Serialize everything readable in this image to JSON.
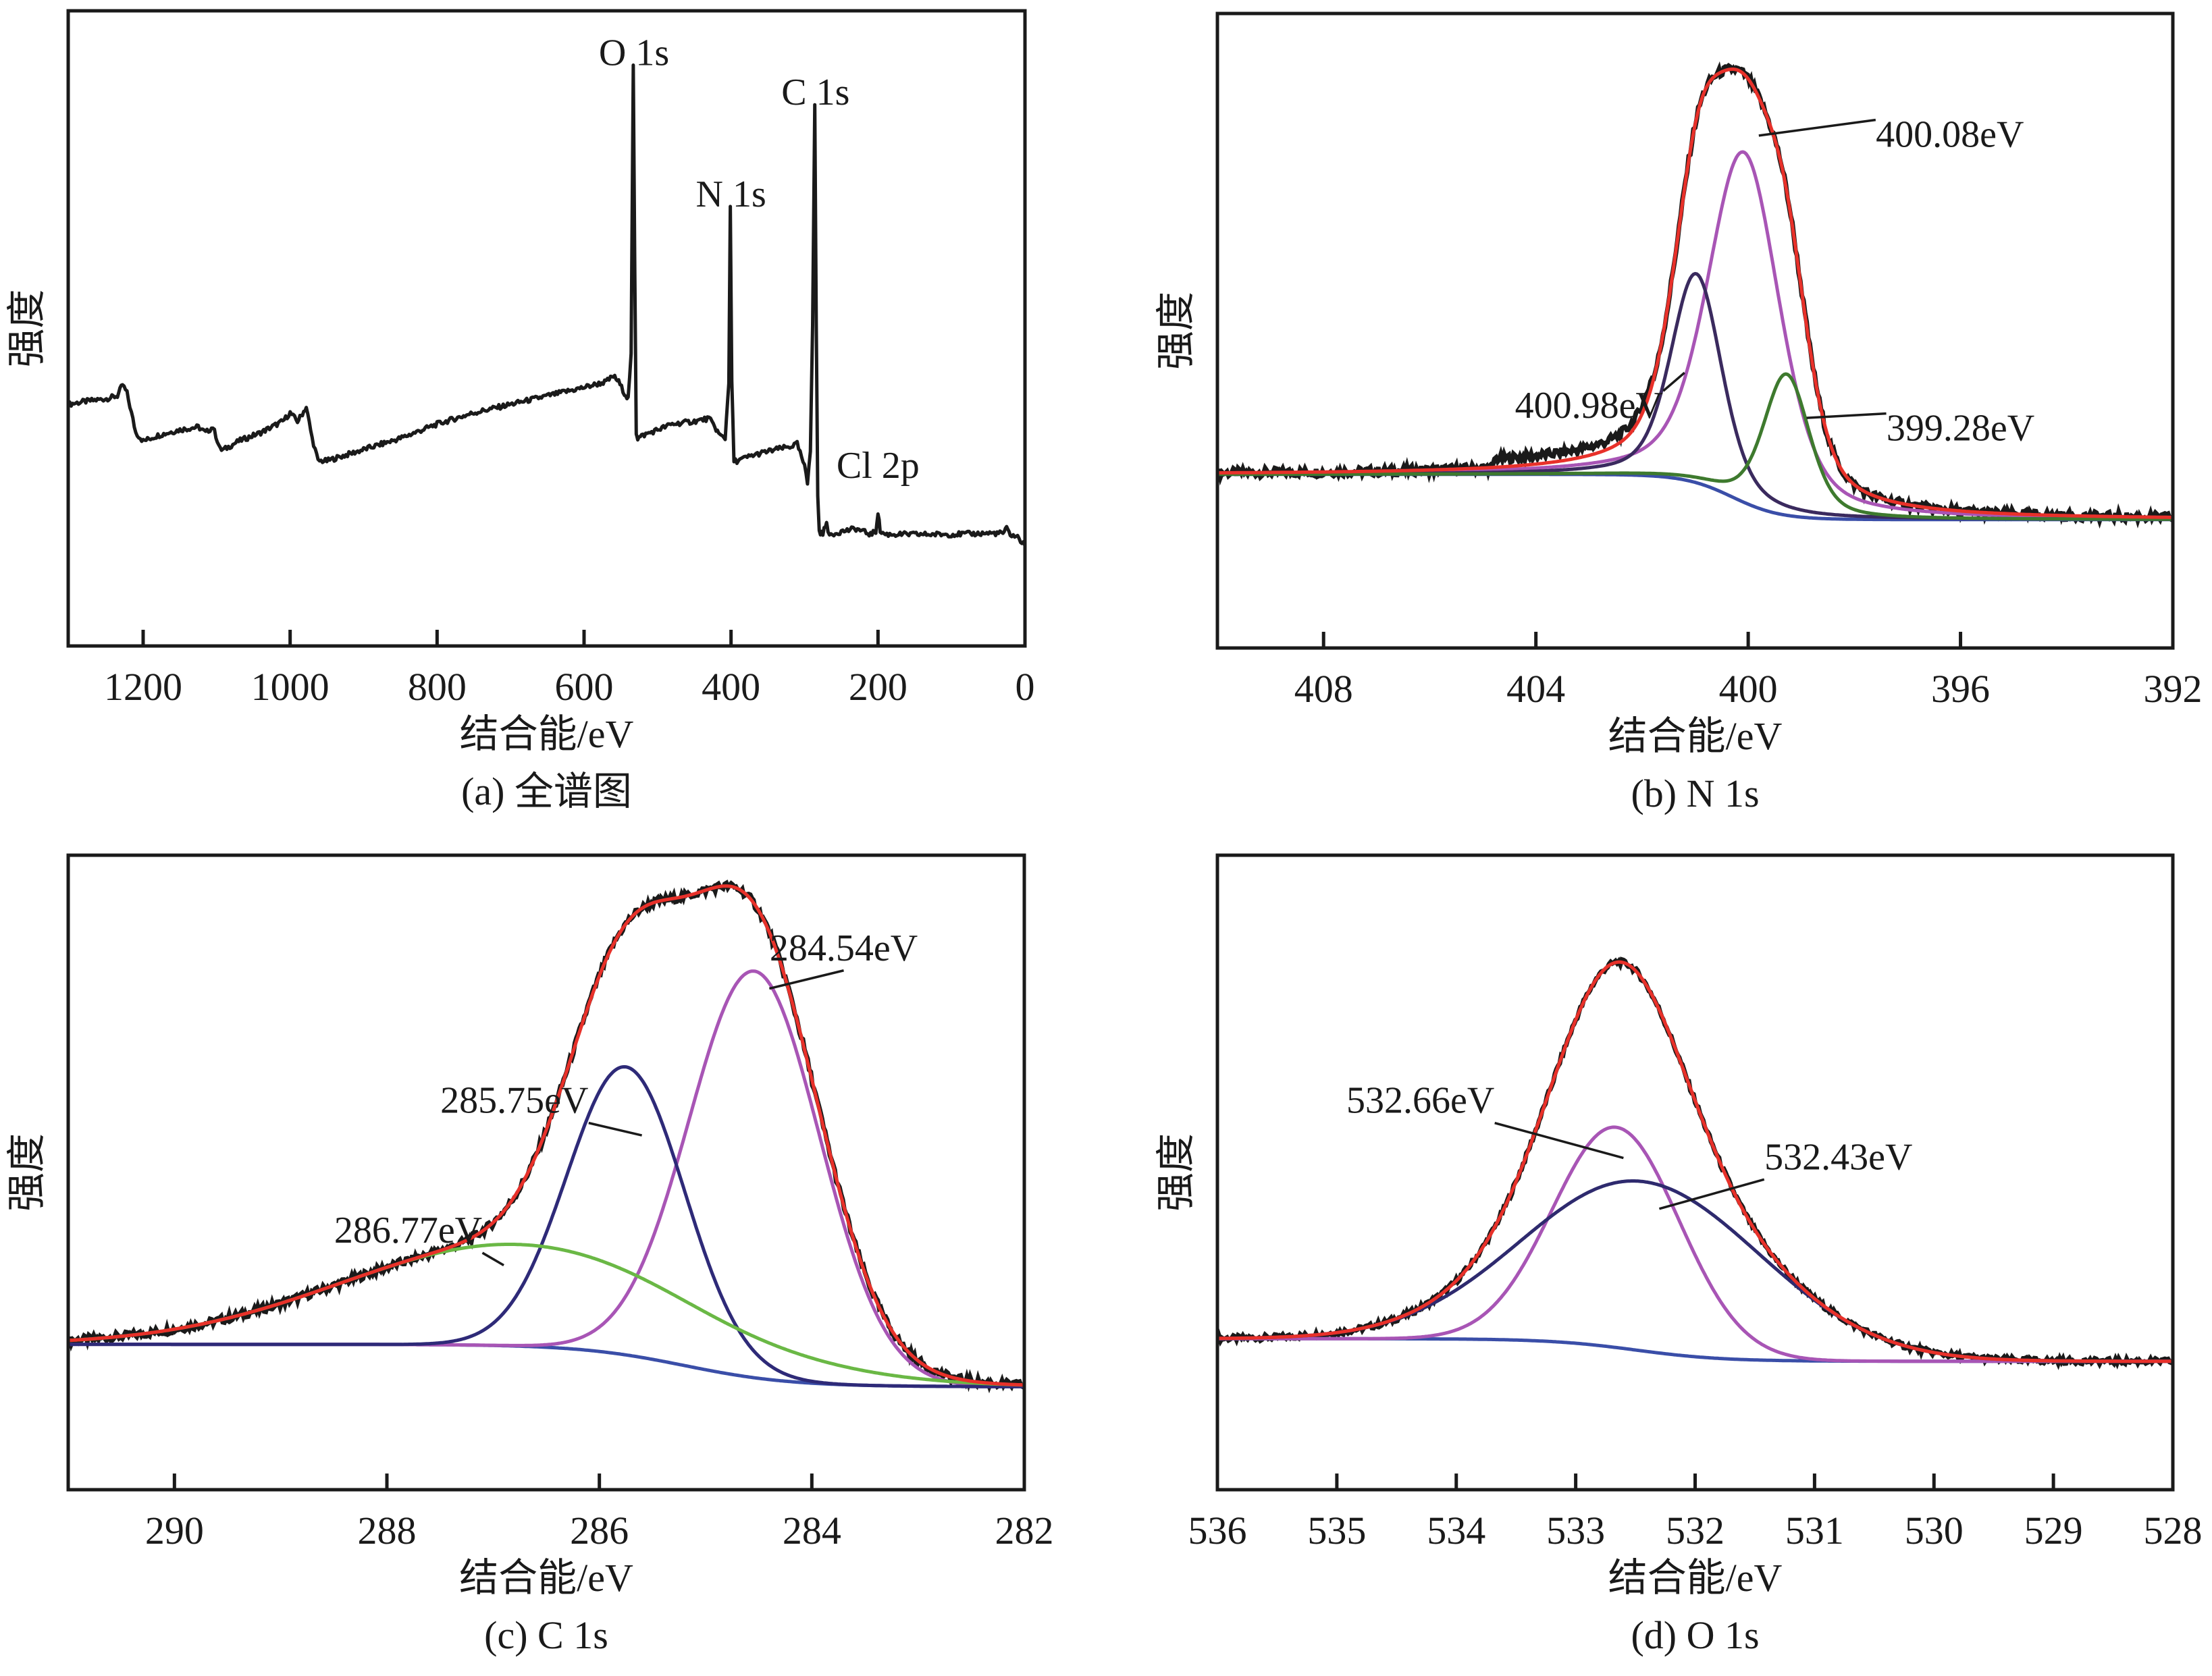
{
  "chart_data": [
    {
      "id": "a",
      "type": "line",
      "title": "",
      "caption": "(a) 全谱图",
      "xlabel": "结合能/eV",
      "ylabel": "强度",
      "xlim": [
        1302,
        0
      ],
      "ylim": [
        0,
        100
      ],
      "xticks": [
        1200,
        1000,
        800,
        600,
        400,
        200,
        0
      ],
      "grid": false,
      "legend": "none",
      "annotations": [
        {
          "text": "O 1s",
          "x": 532,
          "y": 96
        },
        {
          "text": "N 1s",
          "x": 400,
          "y": 71
        },
        {
          "text": "C 1s",
          "x": 285,
          "y": 89
        },
        {
          "text": "Cl 2p",
          "x": 200,
          "y": 23
        }
      ],
      "series": [
        {
          "name": "survey",
          "color": "#1a1a1a",
          "x": [
            1302,
            1280,
            1250,
            1235,
            1228,
            1222,
            1210,
            1200,
            1180,
            1150,
            1125,
            1115,
            1105,
            1095,
            1090,
            1070,
            1040,
            1010,
            1000,
            990,
            985,
            978,
            970,
            962,
            950,
            900,
            850,
            800,
            750,
            700,
            650,
            600,
            570,
            560,
            553,
            545,
            540,
            536,
            533,
            531,
            529,
            527,
            520,
            500,
            480,
            450,
            430,
            422,
            415,
            408,
            403,
            401,
            399,
            396,
            392,
            370,
            340,
            320,
            310,
            300,
            296,
            292,
            289,
            286,
            284,
            282,
            280,
            275,
            270,
            268,
            264,
            250,
            230,
            210,
            203,
            200,
            197,
            190,
            150,
            100,
            50,
            30,
            25,
            20,
            10,
            0
          ],
          "y": [
            36,
            36.5,
            37,
            37.5,
            39.5,
            38,
            31,
            29.5,
            30.5,
            31.5,
            32,
            31,
            32,
            28,
            28,
            29.5,
            31,
            33,
            34.5,
            33,
            34,
            35.5,
            30,
            26,
            26,
            28,
            30,
            32.5,
            34.5,
            36,
            37.5,
            39,
            40,
            41,
            40,
            38,
            37,
            45,
            96,
            60,
            31,
            30,
            30.5,
            31.5,
            32.5,
            33,
            33.5,
            32,
            30.5,
            30,
            40,
            71,
            40,
            26,
            26,
            27,
            28,
            28.5,
            29,
            25,
            22,
            28,
            50,
            89,
            50,
            20,
            13.5,
            13,
            15.5,
            13,
            13,
            13.5,
            14,
            13,
            13.5,
            17,
            13.5,
            13,
            13,
            13,
            13.2,
            13.2,
            14,
            13,
            12.5,
            11
          ]
        }
      ]
    },
    {
      "id": "b",
      "type": "line",
      "title": "",
      "caption": "(b) N 1s",
      "xlabel": "结合能/eV",
      "ylabel": "强度",
      "xlim": [
        410,
        392
      ],
      "ylim": [
        0,
        100
      ],
      "xticks": [
        408,
        404,
        400,
        396,
        392
      ],
      "grid": false,
      "legend": "none",
      "background": {
        "high_side": 24,
        "low_side": 16,
        "step_center": 400.3,
        "step_width": 1.0,
        "color": "#3a4ea8"
      },
      "annotations": [
        {
          "text": "400.08eV",
          "x": 396.2,
          "y": 82,
          "pointer_to": [
            399.8,
            84
          ]
        },
        {
          "text": "400.98eV",
          "x": 403.0,
          "y": 34,
          "pointer_to": [
            401.2,
            42
          ]
        },
        {
          "text": "399.28eV",
          "x": 396.0,
          "y": 30,
          "pointer_to": [
            398.9,
            34
          ]
        }
      ],
      "series": [
        {
          "name": "component 400.08eV",
          "color": "#a855b5",
          "center": 400.08,
          "height": 62,
          "fwhm": 1.55,
          "shape": "voigt"
        },
        {
          "name": "component 400.98eV",
          "color": "#3a2a5e",
          "center": 400.98,
          "height": 37,
          "fwhm": 1.1,
          "shape": "voigt"
        },
        {
          "name": "component 399.28eV",
          "color": "#3e7a2e",
          "center": 399.28,
          "height": 25,
          "fwhm": 1.0,
          "shape": "voigt"
        },
        {
          "name": "envelope",
          "color": "#e8312a",
          "role": "sum"
        },
        {
          "name": "raw data",
          "color": "#1a1a1a",
          "role": "raw",
          "noise": 0.8
        }
      ]
    },
    {
      "id": "c",
      "type": "line",
      "title": "",
      "caption": "(c) C 1s",
      "xlabel": "结合能/eV",
      "ylabel": "强度",
      "xlim": [
        291,
        282
      ],
      "ylim": [
        0,
        100
      ],
      "xticks": [
        290,
        288,
        286,
        284,
        282
      ],
      "grid": false,
      "legend": "none",
      "background": {
        "high_side": 19,
        "low_side": 11.5,
        "step_center": 285.2,
        "step_width": 1.1,
        "color": "#3a4ea8"
      },
      "annotations": [
        {
          "text": "284.54eV",
          "x": 283.7,
          "y": 87,
          "pointer_to": [
            284.4,
            82
          ]
        },
        {
          "text": "285.75eV",
          "x": 286.8,
          "y": 60,
          "pointer_to": [
            285.6,
            56
          ]
        },
        {
          "text": "286.77eV",
          "x": 287.8,
          "y": 37,
          "pointer_to": [
            286.9,
            33
          ]
        }
      ],
      "series": [
        {
          "name": "component 284.54eV",
          "color": "#a855b5",
          "center": 284.54,
          "height": 72,
          "fwhm": 1.45,
          "shape": "gauss"
        },
        {
          "name": "component 285.75eV",
          "color": "#2e2a78",
          "center": 285.75,
          "height": 51,
          "fwhm": 1.3,
          "shape": "gauss"
        },
        {
          "name": "component 286.77eV",
          "color": "#6ab845",
          "center": 286.77,
          "height": 18,
          "fwhm": 3.9,
          "shape": "gauss"
        },
        {
          "name": "envelope",
          "color": "#e8312a",
          "role": "sum"
        },
        {
          "name": "raw data",
          "color": "#1a1a1a",
          "role": "raw",
          "noise": 0.7
        }
      ]
    },
    {
      "id": "d",
      "type": "line",
      "title": "",
      "caption": "(d) O 1s",
      "xlabel": "结合能/eV",
      "ylabel": "强度",
      "xlim": [
        536,
        528
      ],
      "ylim": [
        0,
        100
      ],
      "xticks": [
        536,
        535,
        534,
        533,
        532,
        531,
        530,
        529,
        528
      ],
      "grid": false,
      "legend": "none",
      "background": {
        "high_side": 20,
        "low_side": 16,
        "step_center": 532.5,
        "step_width": 0.8,
        "color": "#3a4ea8"
      },
      "annotations": [
        {
          "text": "532.66eV",
          "x": 534.3,
          "y": 60,
          "pointer_to": [
            532.6,
            52
          ]
        },
        {
          "text": "532.43eV",
          "x": 530.8,
          "y": 50,
          "pointer_to": [
            532.3,
            43
          ]
        }
      ],
      "series": [
        {
          "name": "component 532.66eV",
          "color": "#a855b5",
          "center": 532.66,
          "height": 39,
          "fwhm": 1.25,
          "shape": "gauss"
        },
        {
          "name": "component 532.43eV",
          "color": "#2e2a6e",
          "center": 532.43,
          "height": 30,
          "fwhm": 2.35,
          "shape": "gauss"
        },
        {
          "name": "envelope",
          "color": "#e8312a",
          "role": "sum"
        },
        {
          "name": "raw data",
          "color": "#1a1a1a",
          "role": "raw",
          "noise": 0.5
        }
      ]
    }
  ]
}
